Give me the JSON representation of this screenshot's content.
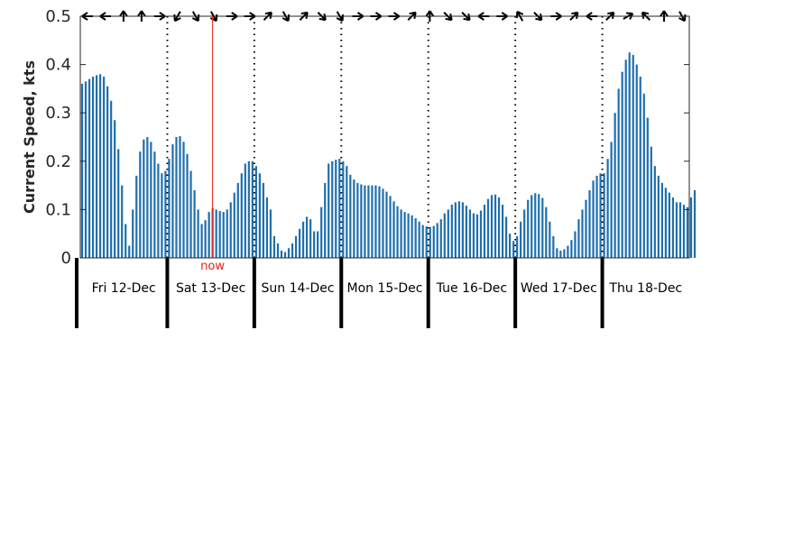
{
  "chart_data": {
    "type": "bar",
    "ylabel": "Current Speed, kts",
    "ylim": [
      0,
      0.5
    ],
    "yticks": [
      0,
      0.1,
      0.2,
      0.3,
      0.4,
      0.5
    ],
    "ytick_labels": [
      "0",
      "0.1",
      "0.2",
      "0.3",
      "0.4",
      "0.5"
    ],
    "days": [
      "Fri 12-Dec",
      "Sat 13-Dec",
      "Sun 14-Dec",
      "Mon 15-Dec",
      "Tue 16-Dec",
      "Wed 17-Dec",
      "Thu 18-Dec"
    ],
    "start_hour": 0,
    "step_hours": 1,
    "values": [
      0.36,
      0.365,
      0.37,
      0.375,
      0.378,
      0.38,
      0.375,
      0.355,
      0.325,
      0.285,
      0.225,
      0.15,
      0.07,
      0.025,
      0.1,
      0.17,
      0.22,
      0.245,
      0.25,
      0.24,
      0.22,
      0.195,
      0.175,
      0.18,
      0.205,
      0.235,
      0.25,
      0.252,
      0.24,
      0.215,
      0.18,
      0.14,
      0.1,
      0.07,
      0.078,
      0.095,
      0.103,
      0.1,
      0.097,
      0.095,
      0.1,
      0.115,
      0.135,
      0.155,
      0.175,
      0.195,
      0.2,
      0.2,
      0.19,
      0.175,
      0.155,
      0.125,
      0.1,
      0.045,
      0.03,
      0.015,
      0.012,
      0.02,
      0.03,
      0.045,
      0.06,
      0.075,
      0.085,
      0.08,
      0.055,
      0.055,
      0.105,
      0.155,
      0.195,
      0.2,
      0.203,
      0.205,
      0.2,
      0.19,
      0.172,
      0.162,
      0.155,
      0.152,
      0.15,
      0.15,
      0.15,
      0.15,
      0.148,
      0.143,
      0.137,
      0.128,
      0.117,
      0.107,
      0.1,
      0.095,
      0.092,
      0.088,
      0.082,
      0.075,
      0.068,
      0.065,
      0.064,
      0.066,
      0.072,
      0.08,
      0.092,
      0.1,
      0.11,
      0.115,
      0.117,
      0.115,
      0.108,
      0.1,
      0.092,
      0.09,
      0.098,
      0.11,
      0.122,
      0.13,
      0.131,
      0.125,
      0.11,
      0.085,
      0.05,
      0.035,
      0.045,
      0.075,
      0.1,
      0.12,
      0.13,
      0.134,
      0.132,
      0.124,
      0.105,
      0.075,
      0.045,
      0.02,
      0.015,
      0.018,
      0.025,
      0.037,
      0.055,
      0.08,
      0.1,
      0.12,
      0.14,
      0.16,
      0.17,
      0.175,
      0.175,
      0.205,
      0.24,
      0.3,
      0.35,
      0.385,
      0.41,
      0.425,
      0.42,
      0.4,
      0.375,
      0.34,
      0.29,
      0.23,
      0.19,
      0.17,
      0.155,
      0.145,
      0.135,
      0.125,
      0.115,
      0.115,
      0.11,
      0.105,
      0.125,
      0.14
    ],
    "direction_arrows_deg": [
      180,
      180,
      90,
      90,
      0,
      240,
      300,
      300,
      0,
      0,
      45,
      300,
      45,
      315,
      300,
      0,
      0,
      0,
      45,
      90,
      315,
      315,
      180,
      0,
      120,
      315,
      0,
      45,
      180,
      45,
      30,
      135,
      90,
      300
    ],
    "now_marker": {
      "label": "now",
      "position_days": 1.52
    },
    "colors": {
      "bar": "#1f6fae",
      "now": "#e8221d",
      "grid_day": "#000000",
      "axis": "#262626"
    }
  }
}
